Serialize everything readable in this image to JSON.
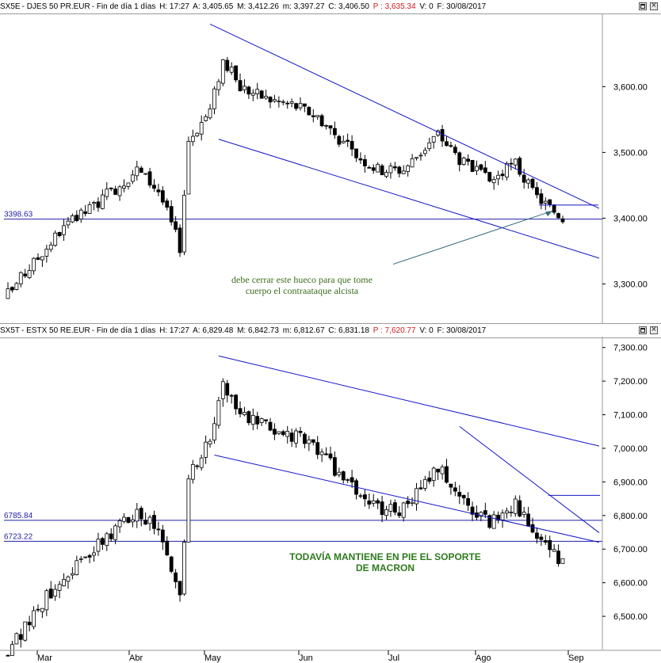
{
  "chart_data": [
    {
      "type": "candlestick",
      "header": {
        "symbol": "SX5E",
        "name": "DJES 50 PR.EUR",
        "period": "Fin de día 1 días",
        "H": "H: 17:27",
        "A": "A: 3,405.65",
        "M": "M: 3,412.26",
        "m": "m: 3,397.27",
        "C": "C: 3,406.50",
        "P": "P : 3,635.34",
        "V": "V: 0",
        "F": "F: 30/08/2017"
      },
      "yticks": [
        "3,300.00",
        "3,400.00",
        "3,500.00",
        "3,600.00"
      ],
      "ytick_values": [
        3300,
        3400,
        3500,
        3600
      ],
      "ylim": [
        3250,
        3710
      ],
      "hlines": [
        {
          "label": "3398.63",
          "value": 3398.63
        }
      ],
      "annotation": {
        "line1": "debe cerrar este hueco para que tome",
        "line2": "cuerpo el contraataque alcista"
      },
      "base": 3330,
      "amp": 0.9,
      "tl_upper": [
        [
          3690,
          3597
        ],
        [
          3490,
          3542
        ]
      ],
      "tl_lower": [
        [
          3520,
          3482
        ],
        [
          3440,
          3380
        ]
      ],
      "arrow": {
        "from": [
          3331,
          3420
        ],
        "to": [
          3400,
          3410
        ]
      },
      "gap": [
        3432,
        3425
      ]
    },
    {
      "type": "candlestick",
      "header": {
        "symbol": "SX5T",
        "name": "ESTX 50 RE.EUR",
        "period": "Fin de día 1 días",
        "H": "H: 17:27",
        "A": "A: 6,829.48",
        "M": "M: 6,842.73",
        "m": "m: 6,812.67",
        "C": "C: 6,831.18",
        "P": "P : 7,620.77",
        "V": "V: 0",
        "F": "F: 30/08/2017"
      },
      "yticks": [
        "6,500.00",
        "6,600.00",
        "6,700.00",
        "6,800.00",
        "6,900.00",
        "7,000.00",
        "7,100.00",
        "7,200.00",
        "7,300.00"
      ],
      "ytick_values": [
        6500,
        6600,
        6700,
        6800,
        6900,
        7000,
        7100,
        7200,
        7300
      ],
      "ylim": [
        6420,
        7330
      ],
      "hlines": [
        {
          "label": "6785.84",
          "value": 6785.84
        },
        {
          "label": "6723.22",
          "value": 6723.22
        }
      ],
      "annotation": {
        "line1": "TODAVÍA MANTIENE EN PIE EL SOPORTE",
        "line2": "DE MACRON"
      },
      "base": 6500,
      "amp": 2.0
    }
  ],
  "x_axis": {
    "labels": [
      "Mar",
      "Abr",
      "May",
      "Jun",
      "Jul",
      "Ago",
      "Sep"
    ]
  },
  "colors": {
    "trend": "#1515c8",
    "hline": "#1f1fa8",
    "axis_text": "#000000",
    "annotation_top": "#3b6e1e",
    "annotation_bottom": "#2f7a1e",
    "arrow": "#3a6f7c",
    "up": "#ffffff",
    "down": "#000000"
  }
}
